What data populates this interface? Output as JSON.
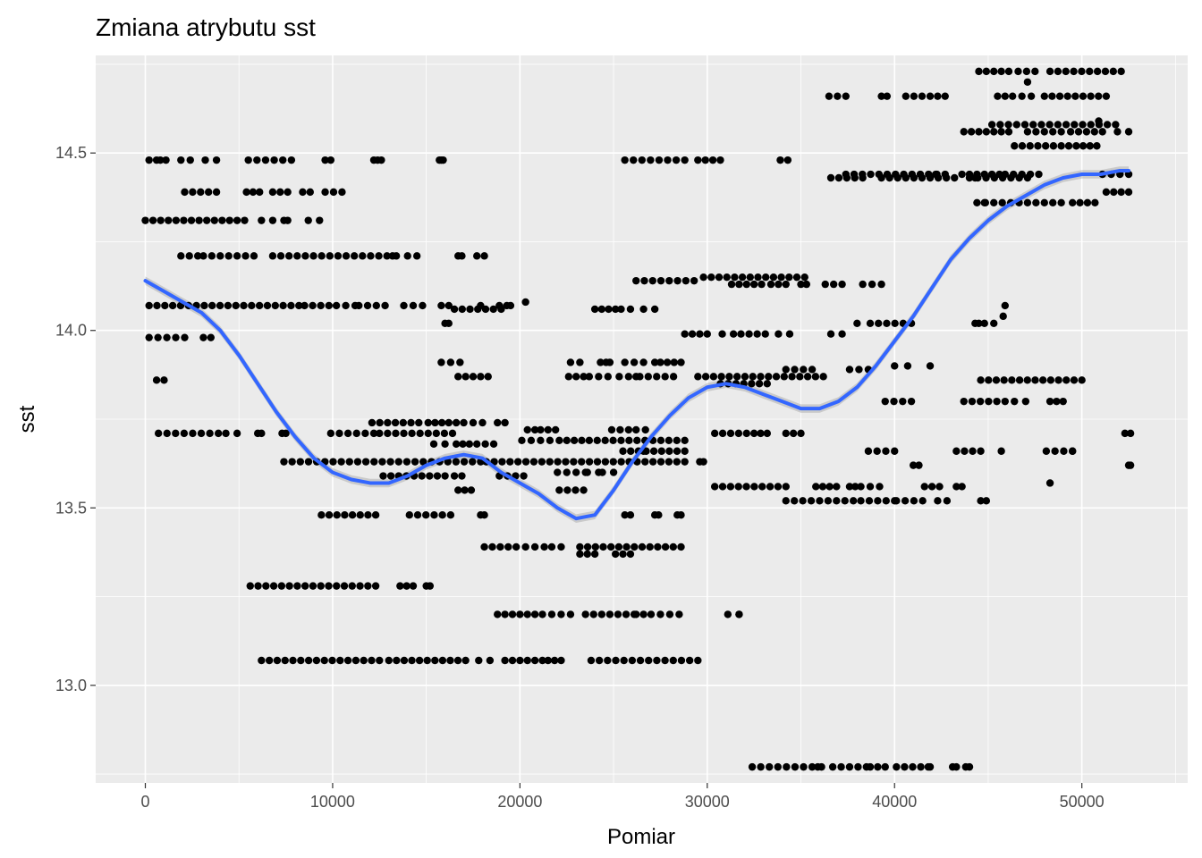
{
  "chart_data": {
    "type": "scatter",
    "title": "Zmiana atrybutu sst",
    "xlabel": "Pomiar",
    "ylabel": "sst",
    "xlim": [
      -2650,
      55650
    ],
    "ylim": [
      12.725,
      14.775
    ],
    "x_ticks": [
      0,
      10000,
      20000,
      30000,
      40000,
      50000
    ],
    "x_tick_labels": [
      "0",
      "10000",
      "20000",
      "30000",
      "40000",
      "50000"
    ],
    "y_ticks": [
      13.0,
      13.5,
      14.0,
      14.5
    ],
    "y_tick_labels": [
      "13.0",
      "13.5",
      "14.0",
      "14.5"
    ],
    "grid": true,
    "colors": {
      "panel": "#ebebeb",
      "grid": "#ffffff",
      "points": "#000000",
      "smooth": "#3366ff",
      "ribbon": "#999999"
    },
    "point_segments": [
      {
        "y": 14.48,
        "x": [
          [
            200,
            600
          ],
          [
            800,
            1100
          ],
          [
            1900,
            2400
          ],
          [
            3200,
            3800
          ],
          [
            5500,
            7800
          ],
          [
            9600,
            9900
          ],
          [
            12200,
            12400
          ],
          [
            15700,
            15900
          ],
          [
            25600,
            28800
          ],
          [
            29500,
            30700
          ],
          [
            33900,
            34300
          ]
        ]
      },
      {
        "y": 14.39,
        "x": [
          [
            2100,
            3800
          ],
          [
            5400,
            6100
          ],
          [
            6800,
            7600
          ],
          [
            8400,
            8800
          ],
          [
            9600,
            10500
          ]
        ]
      },
      {
        "y": 14.31,
        "x": [
          [
            0,
            4100
          ],
          [
            4500,
            5300
          ],
          [
            6200,
            6800
          ],
          [
            7400,
            7600
          ],
          [
            8700,
            9300
          ]
        ]
      },
      {
        "y": 14.21,
        "x": [
          [
            1900,
            2800
          ],
          [
            3100,
            5800
          ],
          [
            6800,
            12900
          ],
          [
            13200,
            13400
          ],
          [
            14000,
            14500
          ],
          [
            16700,
            16900
          ],
          [
            17700,
            18100
          ]
        ]
      },
      {
        "y": 14.07,
        "x": [
          [
            200,
            8200
          ],
          [
            8500,
            9800
          ],
          [
            10200,
            11200
          ],
          [
            11400,
            12800
          ],
          [
            13800,
            14800
          ],
          [
            15800,
            16200
          ],
          [
            19300,
            19500
          ]
        ]
      },
      {
        "y": 14.06,
        "x": [
          [
            16500,
            19000
          ]
        ]
      },
      {
        "y": 14.02,
        "x": [
          [
            16000,
            16200
          ]
        ]
      },
      {
        "y": 13.98,
        "x": [
          [
            200,
            2100
          ],
          [
            3100,
            3500
          ]
        ]
      },
      {
        "y": 13.91,
        "x": [
          [
            15800,
            16800
          ]
        ]
      },
      {
        "y": 13.87,
        "x": [
          [
            16700,
            18300
          ]
        ]
      },
      {
        "y": 13.86,
        "x": [
          [
            600,
            1000
          ]
        ]
      },
      {
        "y": 13.74,
        "x": [
          [
            12100,
            14600
          ],
          [
            15100,
            16200
          ],
          [
            16600,
            17000
          ],
          [
            17500,
            18000
          ],
          [
            18800,
            19200
          ]
        ]
      },
      {
        "y": 13.71,
        "x": [
          [
            700,
            3900
          ],
          [
            4300,
            4900
          ],
          [
            6000,
            6200
          ],
          [
            7300,
            7500
          ],
          [
            9900,
            12200
          ],
          [
            12500,
            16400
          ]
        ]
      },
      {
        "y": 13.68,
        "x": [
          [
            15400,
            16000
          ],
          [
            16600,
            17300
          ],
          [
            17700,
            18600
          ]
        ]
      },
      {
        "y": 13.63,
        "x": [
          [
            7400,
            17900
          ],
          [
            18200,
            28800
          ],
          [
            29600,
            29800
          ]
        ]
      },
      {
        "y": 13.59,
        "x": [
          [
            12700,
            16000
          ],
          [
            16500,
            16900
          ],
          [
            18900,
            20200
          ]
        ]
      },
      {
        "y": 13.55,
        "x": [
          [
            16700,
            17400
          ],
          [
            22100,
            23400
          ]
        ]
      },
      {
        "y": 13.48,
        "x": [
          [
            9400,
            12300
          ],
          [
            14100,
            16300
          ],
          [
            17900,
            18100
          ]
        ]
      },
      {
        "y": 13.28,
        "x": [
          [
            5600,
            12300
          ],
          [
            13600,
            14300
          ],
          [
            15000,
            15200
          ]
        ]
      },
      {
        "y": 13.07,
        "x": [
          [
            6200,
            12500
          ],
          [
            13000,
            17100
          ],
          [
            17800,
            18400
          ],
          [
            19200,
            21200
          ],
          [
            21500,
            22200
          ],
          [
            23800,
            29500
          ]
        ]
      },
      {
        "y": 13.72,
        "x": [
          [
            20400,
            20800
          ],
          [
            21100,
            21900
          ],
          [
            24900,
            25800
          ],
          [
            26200,
            26700
          ]
        ]
      },
      {
        "y": 13.69,
        "x": [
          [
            20100,
            21600
          ],
          [
            22100,
            23300
          ],
          [
            23700,
            28800
          ]
        ]
      },
      {
        "y": 13.66,
        "x": [
          [
            25500,
            28800
          ]
        ]
      },
      {
        "y": 13.6,
        "x": [
          [
            22000,
            23500
          ],
          [
            23600,
            24200
          ],
          [
            24400,
            25000
          ]
        ]
      },
      {
        "y": 13.48,
        "x": [
          [
            25600,
            25900
          ],
          [
            27200,
            27400
          ],
          [
            28400,
            28600
          ]
        ]
      },
      {
        "y": 13.39,
        "x": [
          [
            18100,
            19800
          ],
          [
            20300,
            21300
          ],
          [
            21700,
            22200
          ],
          [
            23200,
            28600
          ]
        ]
      },
      {
        "y": 13.37,
        "x": [
          [
            23200,
            24000
          ],
          [
            25100,
            25900
          ]
        ]
      },
      {
        "y": 13.2,
        "x": [
          [
            18800,
            21200
          ],
          [
            21700,
            22700
          ],
          [
            23500,
            26100
          ],
          [
            26200,
            26600
          ],
          [
            27000,
            28500
          ],
          [
            31100,
            31700
          ]
        ]
      },
      {
        "y": 13.91,
        "x": [
          [
            22700,
            23200
          ],
          [
            24300,
            24600
          ],
          [
            25600,
            26600
          ],
          [
            27500,
            28600
          ]
        ]
      },
      {
        "y": 13.87,
        "x": [
          [
            22600,
            23400
          ],
          [
            23700,
            24200
          ],
          [
            24700,
            25300
          ],
          [
            25800,
            26200
          ],
          [
            26400,
            28200
          ]
        ]
      },
      {
        "y": 14.06,
        "x": [
          [
            24000,
            25100
          ],
          [
            25400,
            25900
          ],
          [
            26600,
            27200
          ]
        ]
      },
      {
        "y": 14.14,
        "x": [
          [
            26200,
            29300
          ]
        ]
      },
      {
        "y": 14.15,
        "x": [
          [
            29800,
            35200
          ]
        ]
      },
      {
        "y": 14.13,
        "x": [
          [
            31300,
            32900
          ],
          [
            33400,
            34200
          ],
          [
            35000,
            35300
          ],
          [
            36300,
            37200
          ],
          [
            38300,
            39300
          ]
        ]
      },
      {
        "y": 13.99,
        "x": [
          [
            28800,
            30000
          ],
          [
            30800,
            31400
          ],
          [
            31800,
            33100
          ],
          [
            33800,
            34400
          ],
          [
            36600,
            37200
          ]
        ]
      },
      {
        "y": 13.87,
        "x": [
          [
            29500,
            36200
          ]
        ]
      },
      {
        "y": 13.89,
        "x": [
          [
            34200,
            35600
          ],
          [
            37600,
            38600
          ]
        ]
      },
      {
        "y": 13.85,
        "x": [
          [
            30700,
            33200
          ]
        ]
      },
      {
        "y": 13.71,
        "x": [
          [
            30400,
            32100
          ],
          [
            32500,
            33200
          ],
          [
            34200,
            35000
          ]
        ]
      },
      {
        "y": 13.56,
        "x": [
          [
            30400,
            34200
          ],
          [
            35800,
            36900
          ],
          [
            37600,
            37900
          ],
          [
            38200,
            39200
          ]
        ]
      },
      {
        "y": 13.52,
        "x": [
          [
            34200,
            37800
          ],
          [
            38200,
            40000
          ]
        ]
      },
      {
        "y": 12.77,
        "x": [
          [
            32400,
            35600
          ],
          [
            35900,
            36100
          ],
          [
            36700,
            38500
          ],
          [
            38700,
            39500
          ],
          [
            40100,
            41400
          ],
          [
            41800,
            41900
          ],
          [
            43100,
            43300
          ],
          [
            43800,
            44000
          ]
        ]
      },
      {
        "y": 14.66,
        "x": [
          [
            36500,
            37400
          ],
          [
            39300,
            39600
          ],
          [
            40600,
            41900
          ],
          [
            42300,
            42700
          ],
          [
            45500,
            46300
          ],
          [
            46800,
            47300
          ],
          [
            48000,
            51300
          ]
        ]
      },
      {
        "y": 14.73,
        "x": [
          [
            44500,
            45300
          ],
          [
            45700,
            46100
          ],
          [
            46600,
            47500
          ],
          [
            48300,
            52100
          ]
        ]
      },
      {
        "y": 14.58,
        "x": [
          [
            45200,
            51800
          ]
        ]
      },
      {
        "y": 14.56,
        "x": [
          [
            43700,
            46100
          ],
          [
            47100,
            48900
          ],
          [
            49400,
            51100
          ],
          [
            51900,
            52500
          ]
        ]
      },
      {
        "y": 14.52,
        "x": [
          [
            46400,
            48900
          ],
          [
            49700,
            50800
          ]
        ]
      },
      {
        "y": 14.44,
        "x": [
          [
            37400,
            42700
          ],
          [
            43600,
            45600
          ],
          [
            45900,
            47700
          ],
          [
            51100,
            52500
          ]
        ]
      },
      {
        "y": 14.43,
        "x": [
          [
            36600,
            38300
          ],
          [
            39300,
            43200
          ],
          [
            44000,
            47100
          ]
        ]
      },
      {
        "y": 14.39,
        "x": [
          [
            51300,
            52500
          ]
        ]
      },
      {
        "y": 14.36,
        "x": [
          [
            44400,
            48900
          ],
          [
            49500,
            50700
          ]
        ]
      },
      {
        "y": 14.02,
        "x": [
          [
            38700,
            40900
          ],
          [
            44300,
            45300
          ]
        ]
      },
      {
        "y": 13.8,
        "x": [
          [
            39500,
            40900
          ],
          [
            43700,
            45900
          ],
          [
            46400,
            47000
          ],
          [
            48300,
            49000
          ]
        ]
      },
      {
        "y": 13.86,
        "x": [
          [
            44600,
            50000
          ]
        ]
      },
      {
        "y": 13.71,
        "x": [
          [
            52300,
            52600
          ]
        ]
      },
      {
        "y": 13.66,
        "x": [
          [
            38600,
            40000
          ],
          [
            43300,
            44600
          ],
          [
            48100,
            49500
          ]
        ]
      },
      {
        "y": 13.62,
        "x": [
          [
            41000,
            41300
          ],
          [
            52500,
            52600
          ]
        ]
      },
      {
        "y": 13.56,
        "x": [
          [
            41600,
            42400
          ],
          [
            43300,
            43600
          ]
        ]
      },
      {
        "y": 13.52,
        "x": [
          [
            40100,
            41500
          ],
          [
            42300,
            42800
          ],
          [
            44600,
            44900
          ]
        ]
      }
    ],
    "isolated_points": [
      [
        17900,
        14.07
      ],
      [
        18900,
        14.07
      ],
      [
        20300,
        14.08
      ],
      [
        12600,
        14.48
      ],
      [
        15800,
        14.48
      ],
      [
        24800,
        13.91
      ],
      [
        27200,
        13.91
      ],
      [
        31700,
        13.2
      ],
      [
        26600,
        13.66
      ],
      [
        38000,
        14.02
      ],
      [
        40000,
        13.9
      ],
      [
        40700,
        13.9
      ],
      [
        41900,
        13.9
      ],
      [
        42200,
        14.44
      ],
      [
        44300,
        14.43
      ],
      [
        44800,
        14.36
      ],
      [
        45700,
        13.66
      ],
      [
        48300,
        13.57
      ],
      [
        49500,
        13.66
      ],
      [
        44500,
        14.02
      ],
      [
        45900,
        14.07
      ],
      [
        45800,
        14.04
      ],
      [
        47100,
        14.7
      ],
      [
        49300,
        14.52
      ],
      [
        50900,
        14.59
      ]
    ],
    "smooth_curve": {
      "x": [
        0,
        1000,
        2000,
        3000,
        4000,
        5000,
        6000,
        7000,
        8000,
        9000,
        10000,
        11000,
        12000,
        13000,
        14000,
        15000,
        16000,
        17000,
        18000,
        19000,
        20000,
        21000,
        22000,
        23000,
        24000,
        25000,
        26000,
        27000,
        28000,
        29000,
        30000,
        31000,
        32000,
        33000,
        34000,
        35000,
        36000,
        37000,
        38000,
        39000,
        40000,
        41000,
        42000,
        43000,
        44000,
        45000,
        46000,
        47000,
        48000,
        49000,
        50000,
        51000,
        52000,
        52500
      ],
      "y": [
        14.14,
        14.11,
        14.08,
        14.05,
        14.0,
        13.93,
        13.85,
        13.77,
        13.7,
        13.64,
        13.6,
        13.58,
        13.57,
        13.57,
        13.59,
        13.62,
        13.64,
        13.65,
        13.64,
        13.6,
        13.57,
        13.54,
        13.5,
        13.47,
        13.48,
        13.55,
        13.63,
        13.7,
        13.76,
        13.81,
        13.84,
        13.85,
        13.84,
        13.82,
        13.8,
        13.78,
        13.78,
        13.8,
        13.84,
        13.9,
        13.97,
        14.04,
        14.12,
        14.2,
        14.26,
        14.31,
        14.35,
        14.38,
        14.41,
        14.43,
        14.44,
        14.44,
        14.45,
        14.45
      ]
    }
  }
}
